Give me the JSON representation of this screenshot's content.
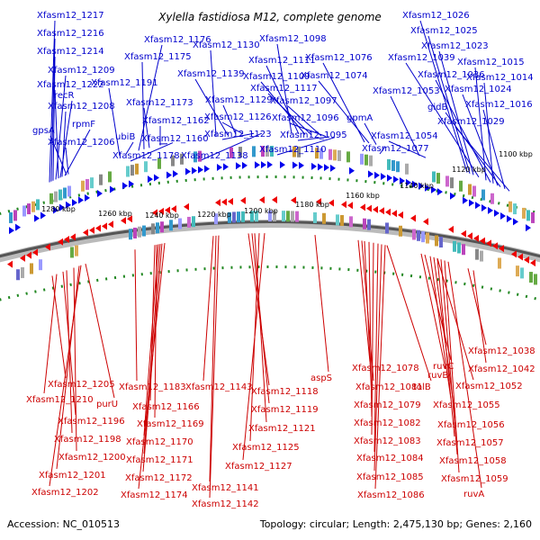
{
  "title": "Xylella fastidiosa M12, complete genome",
  "footer": {
    "accession": "Accession: NC_010513",
    "summary": "Topology: circular; Length: 2,475,130 bp; Genes: 2,160"
  },
  "colors": {
    "forward": "#0000cc",
    "reverse": "#cc0000",
    "backbone": "#555555",
    "dots": "#228822"
  },
  "ticks": [
    "1280 kbp",
    "1260 kbp",
    "1240 kbp",
    "1220 kbp",
    "1200 kbp",
    "1180 kbp",
    "1160 kbp",
    "1140 kbp",
    "1120 kbp",
    "1100 kbp"
  ],
  "forward_labels": [
    "Xfasm12_1217",
    "Xfasm12_1216",
    "Xfasm12_1214",
    "Xfasm12_1209",
    "Xfasm12_1222",
    "recR",
    "Xfasm12_1208",
    "rpmF",
    "gpsA",
    "Xfasm12_1206",
    "Xfasm12_1176",
    "Xfasm12_1175",
    "Xfasm12_1191",
    "Xfasm12_1173",
    "Xfasm12_1162",
    "ubiB",
    "Xfasm12_1160",
    "Xfasm12_1178",
    "Xfasm12_1130",
    "Xfasm12_1139",
    "Xfasm12_1129",
    "Xfasm12_1126",
    "Xfasm12_1123",
    "Xfasm12_1138",
    "Xfasm12_1098",
    "Xfasm12_1111",
    "Xfasm12_1109",
    "Xfasm12_1117",
    "Xfasm12_1097",
    "Xfasm12_1096",
    "Xfasm12_1095",
    "Xfasm12_1110",
    "Xfasm12_1076",
    "Xfasm12_1074",
    "gpmA",
    "Xfasm12_1077",
    "Xfasm12_1053",
    "Xfasm12_1054",
    "Xfasm12_1026",
    "Xfasm12_1025",
    "Xfasm12_1023",
    "Xfasm12_1039",
    "Xfasm12_1015",
    "Xfasm12_1036",
    "Xfasm12_1014",
    "Xfasm12_1024",
    "gidB",
    "Xfasm12_1016",
    "Xfasm12_1029"
  ],
  "reverse_labels": [
    "Xfasm12_1205",
    "Xfasm12_1210",
    "purU",
    "Xfasm12_1196",
    "Xfasm12_1198",
    "Xfasm12_1200",
    "Xfasm12_1201",
    "Xfasm12_1202",
    "Xfasm12_1183",
    "Xfasm12_1166",
    "Xfasm12_1169",
    "Xfasm12_1170",
    "Xfasm12_1171",
    "Xfasm12_1172",
    "Xfasm12_1174",
    "Xfasm12_1143",
    "Xfasm12_1141",
    "Xfasm12_1142",
    "Xfasm12_1118",
    "Xfasm12_1119",
    "Xfasm12_1121",
    "Xfasm12_1125",
    "Xfasm12_1127",
    "aspS",
    "Xfasm12_1078",
    "Xfasm12_1081",
    "tolB",
    "Xfasm12_1079",
    "Xfasm12_1082",
    "Xfasm12_1083",
    "Xfasm12_1084",
    "Xfasm12_1085",
    "Xfasm12_1086",
    "ruvC",
    "ruvB",
    "Xfasm12_1052",
    "Xfasm12_1055",
    "Xfasm12_1056",
    "Xfasm12_1057",
    "Xfasm12_1058",
    "Xfasm12_1059",
    "ruvA",
    "Xfasm12_1038",
    "Xfasm12_1042"
  ]
}
